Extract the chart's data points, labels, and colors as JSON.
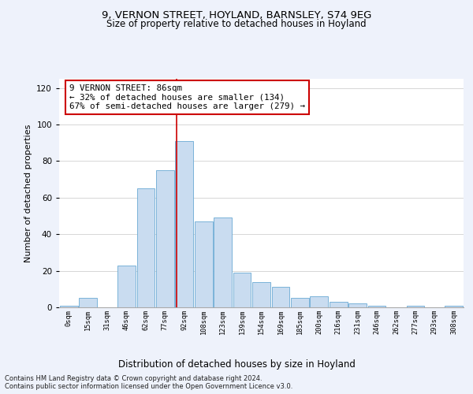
{
  "title1": "9, VERNON STREET, HOYLAND, BARNSLEY, S74 9EG",
  "title2": "Size of property relative to detached houses in Hoyland",
  "xlabel": "Distribution of detached houses by size in Hoyland",
  "ylabel": "Number of detached properties",
  "bar_labels": [
    "0sqm",
    "15sqm",
    "31sqm",
    "46sqm",
    "62sqm",
    "77sqm",
    "92sqm",
    "108sqm",
    "123sqm",
    "139sqm",
    "154sqm",
    "169sqm",
    "185sqm",
    "200sqm",
    "216sqm",
    "231sqm",
    "246sqm",
    "262sqm",
    "277sqm",
    "293sqm",
    "308sqm"
  ],
  "bar_values": [
    1,
    5,
    0,
    23,
    65,
    75,
    91,
    47,
    49,
    19,
    14,
    11,
    5,
    6,
    3,
    2,
    1,
    0,
    1,
    0,
    1
  ],
  "bar_color": "#c9dcf0",
  "bar_edge_color": "#6aaad4",
  "ylim": [
    0,
    125
  ],
  "yticks": [
    0,
    20,
    40,
    60,
    80,
    100,
    120
  ],
  "property_line_x": 5.6,
  "property_line_color": "#cc0000",
  "annotation_text": "9 VERNON STREET: 86sqm\n← 32% of detached houses are smaller (134)\n67% of semi-detached houses are larger (279) →",
  "annotation_box_color": "#ffffff",
  "annotation_box_edge": "#cc0000",
  "footer_text": "Contains HM Land Registry data © Crown copyright and database right 2024.\nContains public sector information licensed under the Open Government Licence v3.0.",
  "background_color": "#eef2fb",
  "plot_background": "#ffffff",
  "grid_color": "#d0d0d0"
}
